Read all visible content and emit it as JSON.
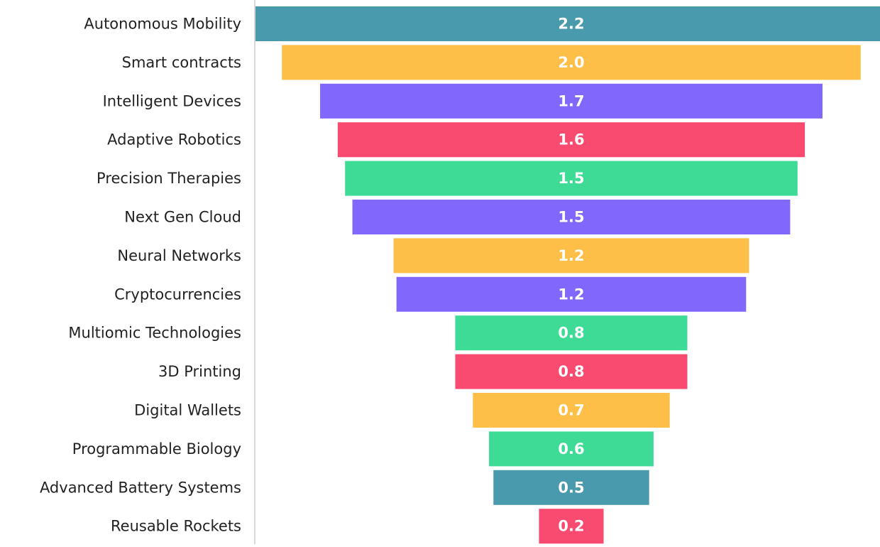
{
  "chart_data": {
    "type": "funnel",
    "categories": [
      "Autonomous Mobility",
      "Smart contracts",
      "Intelligent Devices",
      "Adaptive Robotics",
      "Precision Therapies",
      "Next Gen Cloud",
      "Neural Networks",
      "Cryptocurrencies",
      "Multiomic Technologies",
      "3D Printing",
      "Digital Wallets",
      "Programmable Biology",
      "Advanced Battery Systems",
      "Reusable Rockets"
    ],
    "values": [
      2.15,
      1.97,
      1.71,
      1.59,
      1.54,
      1.49,
      1.21,
      1.19,
      0.79,
      0.79,
      0.67,
      0.56,
      0.53,
      0.22
    ],
    "value_labels": [
      "2.2",
      "2.0",
      "1.7",
      "1.6",
      "1.5",
      "1.5",
      "1.2",
      "1.2",
      "0.8",
      "0.8",
      "0.7",
      "0.6",
      "0.5",
      "0.2"
    ],
    "colors": [
      "#4a9aae",
      "#fdbf47",
      "#8267fd",
      "#f94a6f",
      "#3ddb95",
      "#8267fd",
      "#fdbf47",
      "#8267fd",
      "#3ddb95",
      "#f94a6f",
      "#fdbf47",
      "#3ddb95",
      "#4a9aae",
      "#f94a6f"
    ]
  }
}
